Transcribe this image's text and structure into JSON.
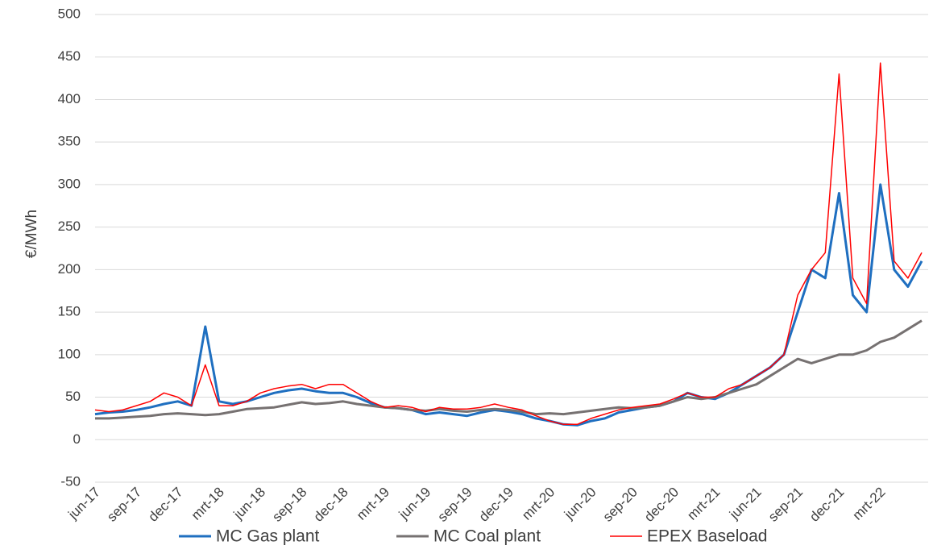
{
  "chart_data": {
    "type": "line",
    "y_label": "€/MWh",
    "categories": [
      "jun-17",
      null,
      null,
      "sep-17",
      null,
      null,
      "dec-17",
      null,
      null,
      "mrt-18",
      null,
      null,
      "jun-18",
      null,
      null,
      "sep-18",
      null,
      null,
      "dec-18",
      null,
      null,
      "mrt-19",
      null,
      null,
      "jun-19",
      null,
      null,
      "sep-19",
      null,
      null,
      "dec-19",
      null,
      null,
      "mrt-20",
      null,
      null,
      "jun-20",
      null,
      null,
      "sep-20",
      null,
      null,
      "dec-20",
      null,
      null,
      "mrt-21",
      null,
      null,
      "jun-21",
      null,
      null,
      "sep-21",
      null,
      null,
      "dec-21",
      null,
      null,
      "mrt-22",
      null,
      null,
      null
    ],
    "series": [
      {
        "name": "MC Gas plant",
        "color": "#1f6fc0",
        "width": 3,
        "values": [
          30,
          32,
          33,
          35,
          38,
          42,
          45,
          40,
          133,
          45,
          42,
          45,
          50,
          55,
          58,
          60,
          57,
          55,
          55,
          50,
          43,
          38,
          37,
          35,
          30,
          32,
          30,
          28,
          32,
          35,
          33,
          30,
          25,
          22,
          18,
          17,
          22,
          25,
          32,
          35,
          38,
          40,
          45,
          55,
          50,
          48,
          55,
          65,
          75,
          85,
          100,
          150,
          200,
          190,
          290,
          170,
          150,
          300,
          200,
          180,
          210
        ]
      },
      {
        "name": "MC Coal plant",
        "color": "#767171",
        "width": 3,
        "values": [
          25,
          25,
          26,
          27,
          28,
          30,
          31,
          30,
          29,
          30,
          33,
          36,
          37,
          38,
          41,
          44,
          42,
          43,
          45,
          42,
          40,
          38,
          37,
          35,
          34,
          36,
          34,
          33,
          35,
          36,
          35,
          33,
          30,
          31,
          30,
          32,
          34,
          36,
          38,
          37,
          38,
          40,
          45,
          50,
          48,
          50,
          55,
          60,
          65,
          75,
          85,
          95,
          90,
          95,
          100,
          100,
          105,
          115,
          120,
          130,
          140
        ]
      },
      {
        "name": "EPEX Baseload",
        "color": "#ff0000",
        "width": 1.5,
        "values": [
          35,
          33,
          35,
          40,
          45,
          55,
          50,
          40,
          88,
          40,
          40,
          45,
          55,
          60,
          63,
          65,
          60,
          65,
          65,
          55,
          45,
          38,
          40,
          38,
          33,
          38,
          36,
          36,
          38,
          42,
          38,
          35,
          28,
          22,
          18,
          18,
          25,
          30,
          35,
          38,
          40,
          42,
          48,
          55,
          50,
          50,
          60,
          65,
          75,
          85,
          100,
          170,
          200,
          220,
          430,
          190,
          160,
          443,
          210,
          190,
          220
        ]
      }
    ],
    "ylim": [
      -50,
      500
    ],
    "yticks": [
      -50,
      0,
      50,
      100,
      150,
      200,
      250,
      300,
      350,
      400,
      450,
      500
    ],
    "grid": true,
    "legend": "bottom"
  }
}
